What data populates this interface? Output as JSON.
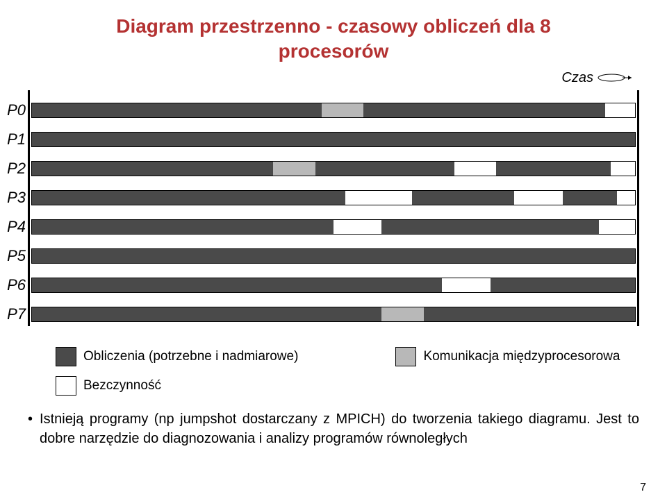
{
  "title_line1": "Diagram przestrzenno - czasowy obliczeń dla 8",
  "title_line2": "procesorów",
  "czas_label": "Czas",
  "colors": {
    "compute": "#4a4a4a",
    "comm": "#b8b8b8",
    "idle": "#ffffff",
    "border": "#000000"
  },
  "processors": [
    {
      "label": "P0",
      "segments": [
        {
          "start": 0,
          "end": 48,
          "type": "compute"
        },
        {
          "start": 48,
          "end": 55,
          "type": "comm"
        },
        {
          "start": 55,
          "end": 95,
          "type": "compute"
        },
        {
          "start": 95,
          "end": 100,
          "type": "idle"
        }
      ]
    },
    {
      "label": "P1",
      "segments": [
        {
          "start": 0,
          "end": 100,
          "type": "compute"
        }
      ]
    },
    {
      "label": "P2",
      "segments": [
        {
          "start": 0,
          "end": 40,
          "type": "compute"
        },
        {
          "start": 40,
          "end": 47,
          "type": "comm"
        },
        {
          "start": 47,
          "end": 70,
          "type": "compute"
        },
        {
          "start": 70,
          "end": 77,
          "type": "idle"
        },
        {
          "start": 77,
          "end": 96,
          "type": "compute"
        },
        {
          "start": 96,
          "end": 100,
          "type": "idle"
        }
      ]
    },
    {
      "label": "P3",
      "segments": [
        {
          "start": 0,
          "end": 52,
          "type": "compute"
        },
        {
          "start": 52,
          "end": 63,
          "type": "idle"
        },
        {
          "start": 63,
          "end": 80,
          "type": "compute"
        },
        {
          "start": 80,
          "end": 88,
          "type": "idle"
        },
        {
          "start": 88,
          "end": 97,
          "type": "compute"
        },
        {
          "start": 97,
          "end": 100,
          "type": "idle"
        }
      ]
    },
    {
      "label": "P4",
      "segments": [
        {
          "start": 0,
          "end": 50,
          "type": "compute"
        },
        {
          "start": 50,
          "end": 58,
          "type": "idle"
        },
        {
          "start": 58,
          "end": 94,
          "type": "compute"
        },
        {
          "start": 94,
          "end": 100,
          "type": "idle"
        }
      ]
    },
    {
      "label": "P5",
      "segments": [
        {
          "start": 0,
          "end": 100,
          "type": "compute"
        }
      ]
    },
    {
      "label": "P6",
      "segments": [
        {
          "start": 0,
          "end": 68,
          "type": "compute"
        },
        {
          "start": 68,
          "end": 76,
          "type": "idle"
        },
        {
          "start": 76,
          "end": 100,
          "type": "compute"
        }
      ]
    },
    {
      "label": "P7",
      "segments": [
        {
          "start": 0,
          "end": 58,
          "type": "compute"
        },
        {
          "start": 58,
          "end": 65,
          "type": "comm"
        },
        {
          "start": 65,
          "end": 100,
          "type": "compute"
        }
      ]
    }
  ],
  "legend": {
    "compute": "Obliczenia (potrzebne i nadmiarowe)",
    "comm": "Komunikacja międzyprocesorowa",
    "idle": "Bezczynność"
  },
  "bullet_text": "Istnieją programy (np jumpshot dostarczany z MPICH) do tworzenia takiego diagramu. Jest to dobre narzędzie do diagnozowania i analizy programów równoległych",
  "page_number": "7"
}
